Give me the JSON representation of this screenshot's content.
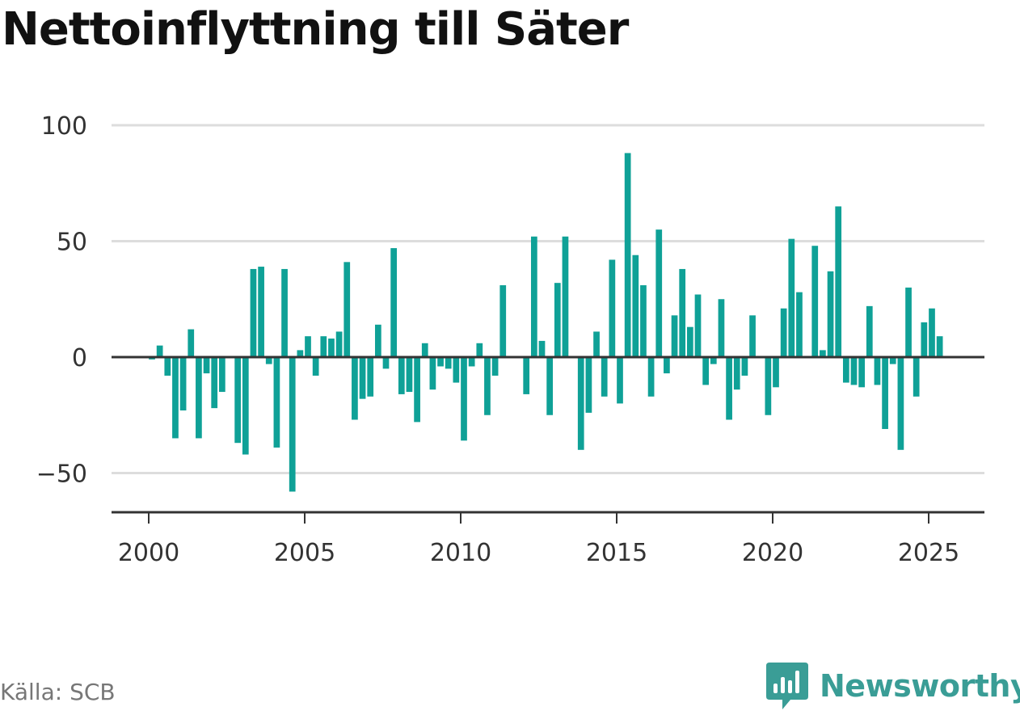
{
  "title": "Nettoinflyttning till Säter",
  "source": "Källa: SCB",
  "brand": {
    "name": "Newsworthy",
    "icon": "newsworthy-logo-icon"
  },
  "colors": {
    "bar": "#0fa197",
    "grid": "#dddddd",
    "axis": "#333333",
    "brand": "#3a9d96"
  },
  "chart_data": {
    "type": "bar",
    "title": "Nettoinflyttning till Säter",
    "xlabel": "",
    "ylabel": "",
    "xlim": [
      1999.25,
      2027.3
    ],
    "ylim": [
      -67,
      100
    ],
    "y_ticks": [
      100,
      50,
      0,
      -50
    ],
    "y_tick_labels": [
      "100",
      "50",
      "0",
      "−50"
    ],
    "x_ticks": [
      2000,
      2005,
      2010,
      2015,
      2020,
      2025
    ],
    "x_tick_labels": [
      "2000",
      "2005",
      "2010",
      "2015",
      "2020",
      "2025"
    ],
    "grid": true,
    "x_start": 2000,
    "frequency": "quarterly",
    "values": [
      -1,
      5,
      -8,
      -35,
      -23,
      12,
      -35,
      -7,
      -22,
      -15,
      0,
      -37,
      -42,
      38,
      39,
      -3,
      -39,
      38,
      -58,
      3,
      9,
      -8,
      9,
      8,
      11,
      41,
      -27,
      -18,
      -17,
      14,
      -5,
      47,
      -16,
      -15,
      -28,
      6,
      -14,
      -4,
      -5,
      -11,
      -36,
      -4,
      6,
      -25,
      -8,
      31,
      0,
      0,
      -16,
      52,
      7,
      -25,
      32,
      52,
      0,
      -40,
      -24,
      11,
      -17,
      42,
      -20,
      88,
      44,
      31,
      -17,
      55,
      -7,
      18,
      38,
      13,
      27,
      -12,
      -3,
      25,
      -27,
      -14,
      -8,
      18,
      0,
      -25,
      -13,
      21,
      51,
      28,
      0,
      48,
      3,
      37,
      65,
      -11,
      -12,
      -13,
      22,
      -12,
      -31,
      -3,
      -40,
      30,
      -17,
      15,
      21,
      9
    ]
  }
}
